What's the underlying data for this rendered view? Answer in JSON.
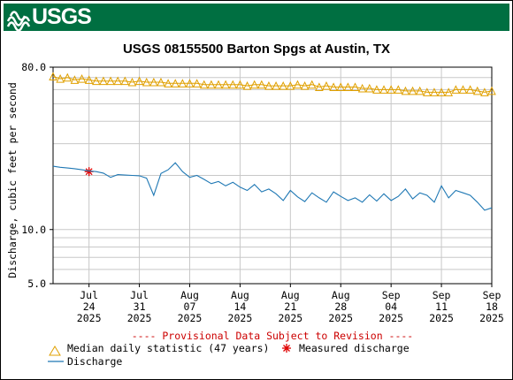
{
  "logo": {
    "text": "USGS"
  },
  "colors": {
    "banner": "#006f41",
    "median": "#e0a000",
    "discharge": "#1f78b4",
    "measured": "#e00000",
    "provisional": "#cc0000"
  },
  "chart_data": {
    "type": "line",
    "title": "USGS 08155500 Barton Spgs at Austin, TX",
    "ylabel": "Discharge, cubic feet per second",
    "yscale": "log",
    "ylim": [
      5,
      80
    ],
    "ytick_labels": [
      "80.0",
      "10.0",
      "5.0"
    ],
    "xlim": [
      "2025-07-19",
      "2025-09-18"
    ],
    "xticks": [
      {
        "month": "Jul",
        "day": "24",
        "year": "2025",
        "date": "2025-07-24"
      },
      {
        "month": "Jul",
        "day": "31",
        "year": "2025",
        "date": "2025-07-31"
      },
      {
        "month": "Aug",
        "day": "07",
        "year": "2025",
        "date": "2025-08-07"
      },
      {
        "month": "Aug",
        "day": "14",
        "year": "2025",
        "date": "2025-08-14"
      },
      {
        "month": "Aug",
        "day": "21",
        "year": "2025",
        "date": "2025-08-21"
      },
      {
        "month": "Aug",
        "day": "28",
        "year": "2025",
        "date": "2025-08-28"
      },
      {
        "month": "Sep",
        "day": "04",
        "year": "2025",
        "date": "2025-09-04"
      },
      {
        "month": "Sep",
        "day": "11",
        "year": "2025",
        "date": "2025-09-11"
      },
      {
        "month": "Sep",
        "day": "18",
        "year": "2025",
        "date": "2025-09-18"
      }
    ],
    "provisional_note": "---- Provisional Data Subject to Revision ----",
    "legend": [
      {
        "key": "median",
        "label": "Median daily statistic (47 years)"
      },
      {
        "key": "measured",
        "label": "Measured discharge"
      },
      {
        "key": "discharge",
        "label": "Discharge"
      }
    ],
    "series": [
      {
        "key": "median",
        "name": "Median daily statistic (47 years)",
        "x": [
          "2025-07-19",
          "2025-07-20",
          "2025-07-21",
          "2025-07-22",
          "2025-07-23",
          "2025-07-24",
          "2025-07-25",
          "2025-07-26",
          "2025-07-27",
          "2025-07-28",
          "2025-07-29",
          "2025-07-30",
          "2025-07-31",
          "2025-08-01",
          "2025-08-02",
          "2025-08-03",
          "2025-08-04",
          "2025-08-05",
          "2025-08-06",
          "2025-08-07",
          "2025-08-08",
          "2025-08-09",
          "2025-08-10",
          "2025-08-11",
          "2025-08-12",
          "2025-08-13",
          "2025-08-14",
          "2025-08-15",
          "2025-08-16",
          "2025-08-17",
          "2025-08-18",
          "2025-08-19",
          "2025-08-20",
          "2025-08-21",
          "2025-08-22",
          "2025-08-23",
          "2025-08-24",
          "2025-08-25",
          "2025-08-26",
          "2025-08-27",
          "2025-08-28",
          "2025-08-29",
          "2025-08-30",
          "2025-08-31",
          "2025-09-01",
          "2025-09-02",
          "2025-09-03",
          "2025-09-04",
          "2025-09-05",
          "2025-09-06",
          "2025-09-07",
          "2025-09-08",
          "2025-09-09",
          "2025-09-10",
          "2025-09-11",
          "2025-09-12",
          "2025-09-13",
          "2025-09-14",
          "2025-09-15",
          "2025-09-16",
          "2025-09-17",
          "2025-09-18"
        ],
        "values": [
          71,
          69,
          70,
          68,
          69,
          68,
          67,
          67,
          67,
          67,
          67,
          66,
          67,
          66,
          66,
          66,
          65,
          65,
          65,
          65,
          65,
          64,
          64,
          64,
          64,
          64,
          64,
          63,
          64,
          64,
          63,
          63,
          63,
          63,
          64,
          63,
          64,
          62,
          63,
          62,
          62,
          62,
          62,
          61,
          61,
          60,
          60,
          60,
          60,
          59,
          59,
          59,
          58,
          58,
          58,
          58,
          60,
          60,
          60,
          59,
          58,
          59
        ]
      },
      {
        "key": "measured",
        "name": "Measured discharge",
        "x": [
          "2025-07-24"
        ],
        "values": [
          21
        ]
      },
      {
        "key": "discharge",
        "name": "Discharge",
        "x": [
          "2025-07-19",
          "2025-07-20",
          "2025-07-21",
          "2025-07-22",
          "2025-07-23",
          "2025-07-24",
          "2025-07-25",
          "2025-07-26",
          "2025-07-27",
          "2025-07-28",
          "2025-07-29",
          "2025-07-30",
          "2025-07-31",
          "2025-08-01",
          "2025-08-02",
          "2025-08-03",
          "2025-08-04",
          "2025-08-05",
          "2025-08-06",
          "2025-08-07",
          "2025-08-08",
          "2025-08-09",
          "2025-08-10",
          "2025-08-11",
          "2025-08-12",
          "2025-08-13",
          "2025-08-14",
          "2025-08-15",
          "2025-08-16",
          "2025-08-17",
          "2025-08-18",
          "2025-08-19",
          "2025-08-20",
          "2025-08-21",
          "2025-08-22",
          "2025-08-23",
          "2025-08-24",
          "2025-08-25",
          "2025-08-26",
          "2025-08-27",
          "2025-08-28",
          "2025-08-29",
          "2025-08-30",
          "2025-08-31",
          "2025-09-01",
          "2025-09-02",
          "2025-09-03",
          "2025-09-04",
          "2025-09-05",
          "2025-09-06",
          "2025-09-07",
          "2025-09-08",
          "2025-09-09",
          "2025-09-10",
          "2025-09-11",
          "2025-09-12",
          "2025-09-13",
          "2025-09-14",
          "2025-09-15",
          "2025-09-16",
          "2025-09-17",
          "2025-09-18"
        ],
        "values": [
          22.5,
          22.2,
          22,
          21.8,
          21.5,
          21.2,
          21,
          20.6,
          19.5,
          20.2,
          20.1,
          20,
          19.9,
          19.3,
          15.5,
          20.5,
          21.5,
          23.5,
          21,
          19.5,
          20,
          19,
          18,
          18.5,
          17.5,
          18.3,
          17.2,
          16.5,
          17.8,
          16.2,
          16.8,
          15.8,
          14.5,
          16.5,
          15.2,
          14.3,
          16,
          15,
          14.2,
          16.2,
          15.3,
          14.5,
          15,
          14.2,
          15.6,
          14.4,
          15.8,
          14.5,
          15.3,
          16.8,
          14.8,
          16,
          15.5,
          14.2,
          17.5,
          15,
          16.5,
          16,
          15.5,
          14.2,
          12.8,
          13.2
        ]
      }
    ]
  }
}
